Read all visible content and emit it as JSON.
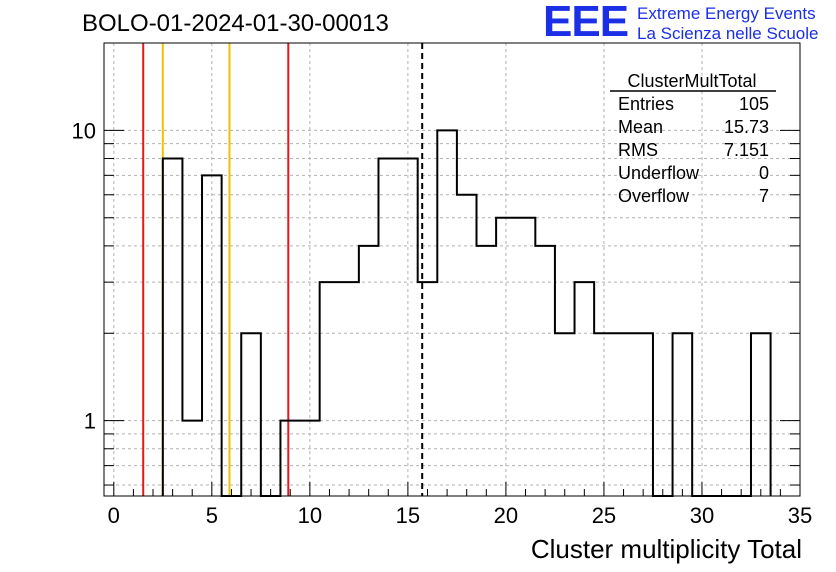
{
  "header": {
    "run_title": "BOLO-01-2024-01-30-00013",
    "logo_mark": "EEE",
    "logo_line1": "Extreme Energy Events",
    "logo_line2": "La Scienza nelle Scuole"
  },
  "stats_box": {
    "name": "ClusterMultTotal",
    "rows": [
      {
        "label": "Entries",
        "value": "105"
      },
      {
        "label": "Mean",
        "value": "15.73"
      },
      {
        "label": "RMS",
        "value": "7.151"
      },
      {
        "label": "Underflow",
        "value": "0"
      },
      {
        "label": "Overflow",
        "value": "7"
      }
    ]
  },
  "colors": {
    "histogram": "#000000",
    "red_lines": "#e0191b",
    "yellow_lines": "#f2c200",
    "grid": "#b3b3b3",
    "logo": "#1a2fe6"
  },
  "chart_data": {
    "type": "histogram",
    "xlabel": "Cluster multiplicity Total",
    "ylabel": "",
    "y_scale": "log",
    "xlim": [
      -0.5,
      35
    ],
    "ylim": [
      0.55,
      20
    ],
    "x_ticks": [
      0,
      5,
      10,
      15,
      20,
      25,
      30,
      35
    ],
    "y_tick_labels": [
      1,
      10
    ],
    "grid": true,
    "bin_width": 1,
    "first_bin_low_edge": 2.5,
    "counts": [
      8,
      1,
      7,
      0,
      2,
      0,
      1,
      1,
      3,
      3,
      4,
      8,
      8,
      3,
      10,
      6,
      4,
      5,
      5,
      4,
      2,
      3,
      2,
      2,
      2,
      0,
      2,
      0,
      0,
      0,
      2
    ],
    "vertical_markers": [
      {
        "x": 1.5,
        "color": "red"
      },
      {
        "x": 2.5,
        "color": "yellow"
      },
      {
        "x": 5.9,
        "color": "yellow"
      },
      {
        "x": 8.9,
        "color": "red"
      },
      {
        "x": 15.73,
        "color": "black",
        "style": "dashed"
      }
    ]
  }
}
